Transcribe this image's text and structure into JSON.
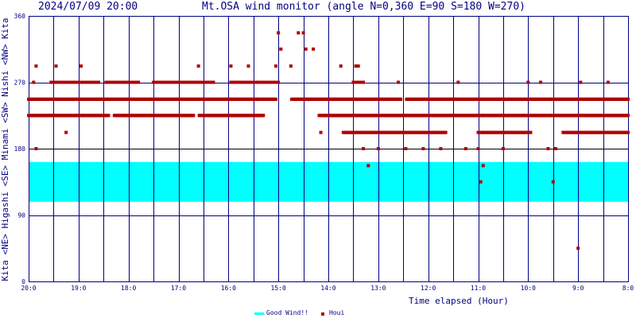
{
  "header": {
    "timestamp": "2024/07/09 20:00",
    "title": "Mt.OSA wind monitor (angle N=0,360 E=90 S=180 W=270)"
  },
  "side_label": "Kita <NE> Higashi <SE> Minami <SW> Nishi <NW> Kita",
  "colors": {
    "frame": "#000080",
    "good_band": "#00ffff",
    "marker": "#b00000",
    "text": "#000080",
    "ref_line": "#000000"
  },
  "chart_data": {
    "type": "scatter",
    "title": "Mt.OSA wind monitor (angle N=0,360 E=90 S=180 W=270)",
    "xlabel": "Time elapsed (Hour)",
    "ylabel": "Kita <NE> Higashi <SE> Minami <SW> Nishi <NW> Kita",
    "x_direction": "reversed (20:00 at left, 8:00 at right)",
    "xlim": [
      20,
      8
    ],
    "ylim": [
      0,
      360
    ],
    "x_ticks": [
      {
        "label": "20:0",
        "hour": 20
      },
      {
        "label": "19:0",
        "hour": 19
      },
      {
        "label": "18:0",
        "hour": 18
      },
      {
        "label": "17:0",
        "hour": 17
      },
      {
        "label": "16:0",
        "hour": 16
      },
      {
        "label": "15:0",
        "hour": 15
      },
      {
        "label": "14:0",
        "hour": 14
      },
      {
        "label": "13:0",
        "hour": 13
      },
      {
        "label": "12:0",
        "hour": 12
      },
      {
        "label": "11:0",
        "hour": 11
      },
      {
        "label": "10:0",
        "hour": 10
      },
      {
        "label": "9:0",
        "hour": 9
      },
      {
        "label": "8:0",
        "hour": 8
      }
    ],
    "y_ticks": [
      0,
      90,
      180,
      270,
      360
    ],
    "grid": "vertical lines every 30 minutes; horizontal lines at 90, 180, 270",
    "good_wind_range": [
      108,
      162
    ],
    "legend": {
      "placement": "bottom-center",
      "items": [
        {
          "label": "Good Wind!!",
          "symbol": "band",
          "color": "#00ffff"
        },
        {
          "label": "Houi",
          "symbol": "square",
          "color": "#b00000"
        }
      ]
    },
    "series": [
      {
        "name": "Houi",
        "bands": [
          {
            "from_hour": 20.0,
            "to_hour": 8.0,
            "angle": 247,
            "gaps": [
              [
                15.05,
                14.75
              ],
              [
                12.55,
                12.45
              ]
            ]
          },
          {
            "from_hour": 20.0,
            "to_hour": 8.0,
            "angle": 225,
            "gaps": [
              [
                15.3,
                14.2
              ],
              [
                18.4,
                18.3
              ],
              [
                16.7,
                16.6
              ]
            ]
          },
          {
            "from_hour": 19.55,
            "to_hour": 18.6,
            "angle": 270
          },
          {
            "from_hour": 18.45,
            "to_hour": 17.8,
            "angle": 270
          },
          {
            "from_hour": 17.5,
            "to_hour": 16.3,
            "angle": 270
          },
          {
            "from_hour": 15.95,
            "to_hour": 15.0,
            "angle": 270
          },
          {
            "from_hour": 13.5,
            "to_hour": 13.3,
            "angle": 270
          },
          {
            "from_hour": 13.7,
            "to_hour": 12.0,
            "angle": 202
          },
          {
            "from_hour": 12.0,
            "to_hour": 11.65,
            "angle": 202
          },
          {
            "from_hour": 11.0,
            "to_hour": 9.95,
            "angle": 202
          },
          {
            "from_hour": 9.3,
            "to_hour": 8.0,
            "angle": 202
          }
        ],
        "points": [
          {
            "hour": 19.85,
            "angle": 292
          },
          {
            "hour": 19.9,
            "angle": 270
          },
          {
            "hour": 19.85,
            "angle": 180
          },
          {
            "hour": 19.45,
            "angle": 292
          },
          {
            "hour": 19.25,
            "angle": 202
          },
          {
            "hour": 18.95,
            "angle": 292
          },
          {
            "hour": 17.0,
            "angle": 225
          },
          {
            "hour": 16.6,
            "angle": 292
          },
          {
            "hour": 15.95,
            "angle": 292
          },
          {
            "hour": 15.6,
            "angle": 292
          },
          {
            "hour": 15.05,
            "angle": 292
          },
          {
            "hour": 15.0,
            "angle": 337
          },
          {
            "hour": 14.95,
            "angle": 315
          },
          {
            "hour": 14.75,
            "angle": 292
          },
          {
            "hour": 14.6,
            "angle": 337
          },
          {
            "hour": 14.5,
            "angle": 337
          },
          {
            "hour": 14.45,
            "angle": 315
          },
          {
            "hour": 14.3,
            "angle": 315
          },
          {
            "hour": 14.15,
            "angle": 202
          },
          {
            "hour": 13.75,
            "angle": 292
          },
          {
            "hour": 13.45,
            "angle": 292
          },
          {
            "hour": 13.4,
            "angle": 292
          },
          {
            "hour": 13.3,
            "angle": 180
          },
          {
            "hour": 13.2,
            "angle": 157
          },
          {
            "hour": 13.0,
            "angle": 180
          },
          {
            "hour": 12.6,
            "angle": 270
          },
          {
            "hour": 12.45,
            "angle": 180
          },
          {
            "hour": 12.1,
            "angle": 180
          },
          {
            "hour": 11.75,
            "angle": 180
          },
          {
            "hour": 11.4,
            "angle": 270
          },
          {
            "hour": 11.25,
            "angle": 180
          },
          {
            "hour": 11.0,
            "angle": 180
          },
          {
            "hour": 10.95,
            "angle": 135
          },
          {
            "hour": 10.9,
            "angle": 157
          },
          {
            "hour": 10.5,
            "angle": 180
          },
          {
            "hour": 10.0,
            "angle": 270
          },
          {
            "hour": 9.75,
            "angle": 270
          },
          {
            "hour": 9.6,
            "angle": 180
          },
          {
            "hour": 9.5,
            "angle": 135
          },
          {
            "hour": 9.45,
            "angle": 180
          },
          {
            "hour": 9.0,
            "angle": 45
          },
          {
            "hour": 8.95,
            "angle": 270
          },
          {
            "hour": 8.4,
            "angle": 270
          }
        ]
      }
    ]
  }
}
